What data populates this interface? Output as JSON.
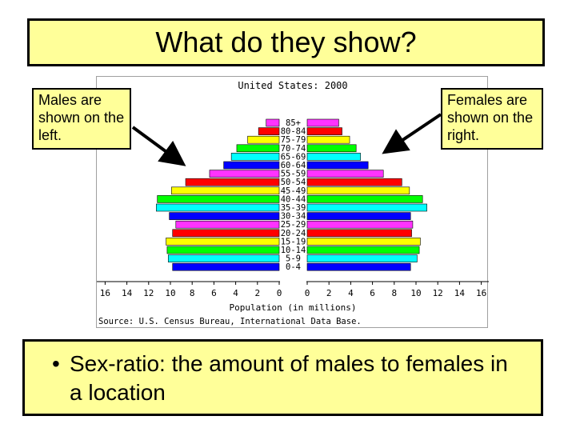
{
  "slide": {
    "title": "What do they show?",
    "callout_left": "Males are shown on the left.",
    "callout_right": "Females are shown on the right.",
    "bullet_symbol": "•",
    "bullet_text": "Sex-ratio: the amount of males to females in a location"
  },
  "chart_data": {
    "type": "bar",
    "orientation": "population-pyramid",
    "title": "United States: 2000",
    "xlabel": "Population (in millions)",
    "source": "Source: U.S. Census Bureau, International Data Base.",
    "categories": [
      "85+",
      "80-84",
      "75-79",
      "70-74",
      "65-69",
      "60-64",
      "55-59",
      "50-54",
      "45-49",
      "40-44",
      "35-39",
      "30-34",
      "25-29",
      "20-24",
      "15-19",
      "10-14",
      "5-9",
      "0-4"
    ],
    "series": [
      {
        "name": "Males",
        "side": "left",
        "values": [
          1.2,
          1.9,
          2.9,
          3.9,
          4.4,
          5.1,
          6.4,
          8.6,
          9.9,
          11.2,
          11.3,
          10.1,
          9.5,
          9.8,
          10.4,
          10.3,
          10.2,
          9.8
        ]
      },
      {
        "name": "Females",
        "side": "right",
        "values": [
          2.9,
          3.2,
          3.9,
          4.5,
          4.9,
          5.6,
          7.0,
          8.7,
          9.4,
          10.6,
          11.0,
          9.5,
          9.7,
          9.6,
          10.4,
          10.3,
          10.1,
          9.5
        ]
      }
    ],
    "bar_colors": [
      "#ff33ff",
      "#ff0000",
      "#ffff00",
      "#00ff00",
      "#00ffff",
      "#0000ff",
      "#ff33ff",
      "#ff0000",
      "#ffff00",
      "#00ff00",
      "#00ffff",
      "#0000ff",
      "#ff33ff",
      "#ff0000",
      "#ffff00",
      "#00ff00",
      "#00ffff",
      "#0000ff"
    ],
    "male_ticks": [
      "16",
      "14",
      "12",
      "10",
      "8",
      "6",
      "4",
      "2",
      "0"
    ],
    "female_ticks": [
      "0",
      "2",
      "4",
      "6",
      "8",
      "10",
      "12",
      "14",
      "16"
    ],
    "xlim": [
      0,
      16
    ],
    "grid": false
  }
}
